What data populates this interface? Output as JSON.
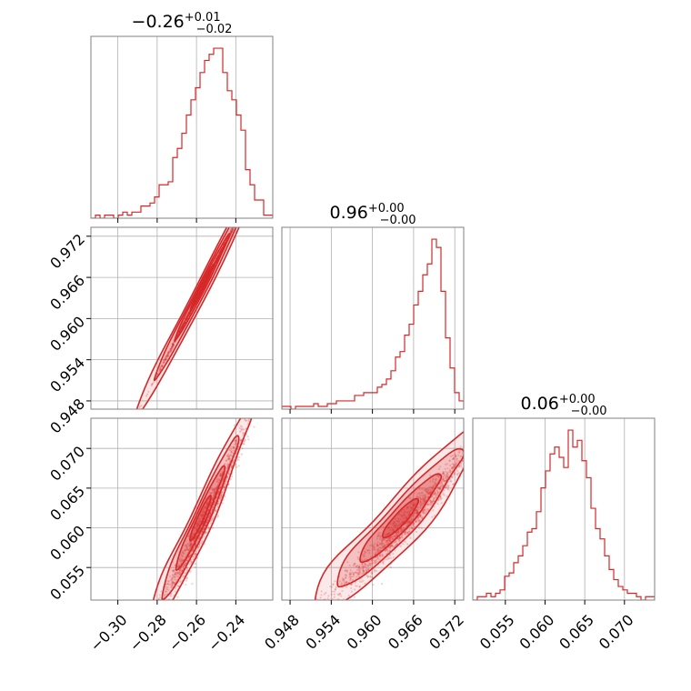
{
  "chart_data": {
    "type": "corner",
    "color": "#d62728",
    "parameters": [
      {
        "title": {
          "value": "−0.26",
          "upper": "+0.01",
          "lower": "−0.02"
        },
        "range": [
          -0.3137,
          -0.2212
        ],
        "ticks": [
          -0.3,
          -0.28,
          -0.26,
          -0.24
        ],
        "tick_labels": [
          "−0.30",
          "−0.28",
          "−0.26",
          "−0.24"
        ]
      },
      {
        "title": {
          "value": "0.96",
          "upper": "+0.00",
          "lower": "−0.00"
        },
        "range": [
          0.9468,
          0.9733
        ],
        "ticks": [
          0.948,
          0.954,
          0.96,
          0.966,
          0.972
        ],
        "tick_labels": [
          "0.948",
          "0.954",
          "0.960",
          "0.966",
          "0.972"
        ]
      },
      {
        "title": {
          "value": "0.06",
          "upper": "+0.00",
          "lower": "−0.00"
        },
        "range": [
          0.0509,
          0.0738
        ],
        "ticks": [
          0.055,
          0.06,
          0.065,
          0.07
        ],
        "tick_labels": [
          "0.055",
          "0.060",
          "0.065",
          "0.070"
        ]
      }
    ],
    "histograms": [
      [
        0,
        1,
        0,
        1,
        1,
        0,
        1,
        2,
        1,
        2,
        2,
        4,
        4,
        5,
        7,
        11,
        11,
        12,
        20,
        23,
        28,
        34,
        39,
        43,
        48,
        52,
        54,
        56,
        56,
        48,
        42,
        39,
        34,
        29,
        16,
        11,
        6,
        6,
        1,
        1
      ],
      [
        1,
        1,
        0,
        1,
        1,
        1,
        1,
        2,
        1,
        1,
        2,
        2,
        3,
        3,
        3,
        3,
        5,
        5,
        6,
        6,
        6,
        8,
        9,
        11,
        14,
        19,
        21,
        27,
        31,
        38,
        43,
        49,
        53,
        62,
        59,
        43,
        26,
        15,
        6,
        3
      ],
      [
        0,
        1,
        1,
        2,
        1,
        2,
        3,
        7,
        8,
        11,
        13,
        16,
        20,
        21,
        26,
        33,
        38,
        43,
        45,
        42,
        39,
        50,
        45,
        47,
        41,
        36,
        27,
        21,
        18,
        13,
        9,
        6,
        4,
        3,
        2,
        2,
        1,
        0,
        1,
        1
      ]
    ],
    "grid": true,
    "xlabel": "",
    "ylabel": ""
  }
}
